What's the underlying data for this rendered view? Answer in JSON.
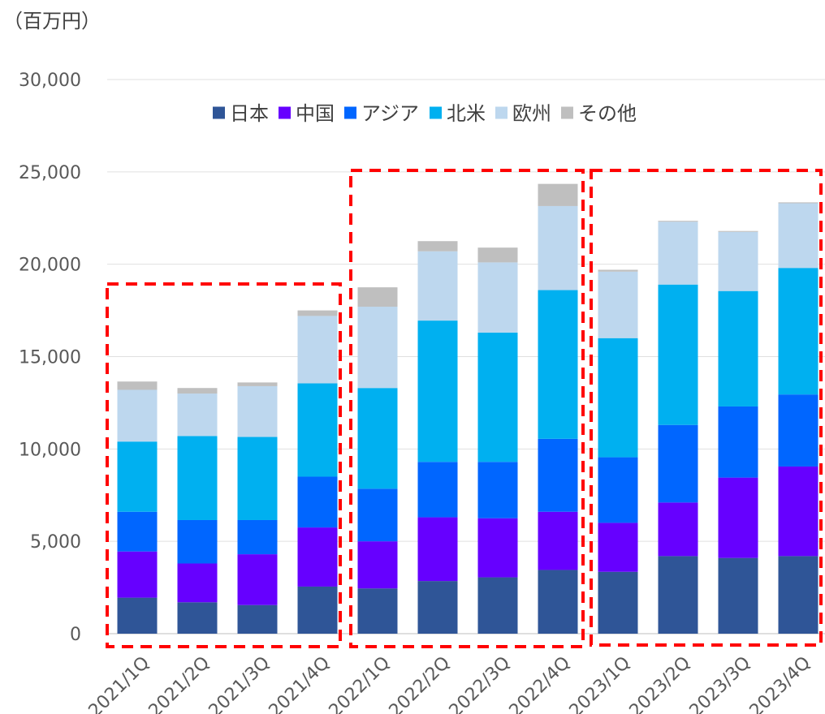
{
  "chart_data": {
    "type": "bar",
    "stacked": true,
    "unit_label": "（百万円）",
    "categories": [
      "2021/1Q",
      "2021/2Q",
      "2021/3Q",
      "2021/4Q",
      "2022/1Q",
      "2022/2Q",
      "2022/3Q",
      "2022/4Q",
      "2023/1Q",
      "2023/2Q",
      "2023/3Q",
      "2023/4Q"
    ],
    "series": [
      {
        "name": "日本",
        "color": "#2F5597",
        "values": [
          1950,
          1700,
          1550,
          2550,
          2450,
          2850,
          3050,
          3450,
          3350,
          4200,
          4100,
          4200
        ]
      },
      {
        "name": "中国",
        "color": "#6600FF",
        "values": [
          2500,
          2100,
          2750,
          3200,
          2550,
          3450,
          3200,
          3150,
          2650,
          2900,
          4350,
          4850
        ]
      },
      {
        "name": "アジア",
        "color": "#0066FF",
        "values": [
          2150,
          2350,
          1850,
          2750,
          2850,
          3000,
          3050,
          3950,
          3550,
          4200,
          3850,
          3900
        ]
      },
      {
        "name": "北米",
        "color": "#00B0F0",
        "values": [
          3800,
          4550,
          4500,
          5050,
          5450,
          7650,
          7000,
          8050,
          6450,
          7600,
          6250,
          6850
        ]
      },
      {
        "name": "欧州",
        "color": "#BDD7EE",
        "values": [
          2800,
          2300,
          2750,
          3650,
          4400,
          3750,
          3800,
          4550,
          3600,
          3400,
          3200,
          3500
        ]
      },
      {
        "name": "その他",
        "color": "#BFBFBF",
        "values": [
          450,
          300,
          200,
          300,
          1050,
          550,
          800,
          1200,
          100,
          50,
          50,
          50
        ]
      }
    ],
    "ylim": [
      0,
      30000
    ],
    "yticks": [
      "0",
      "5,000",
      "10,000",
      "15,000",
      "20,000",
      "25,000",
      "30,000"
    ],
    "grid": true,
    "legend_position": "top-center",
    "highlight_color": "#FF0000",
    "highlight_groups": [
      [
        "2021/1Q",
        "2021/2Q",
        "2021/3Q",
        "2021/4Q"
      ],
      [
        "2022/1Q",
        "2022/2Q",
        "2022/3Q",
        "2022/4Q"
      ],
      [
        "2023/1Q",
        "2023/2Q",
        "2023/3Q",
        "2023/4Q"
      ]
    ]
  }
}
